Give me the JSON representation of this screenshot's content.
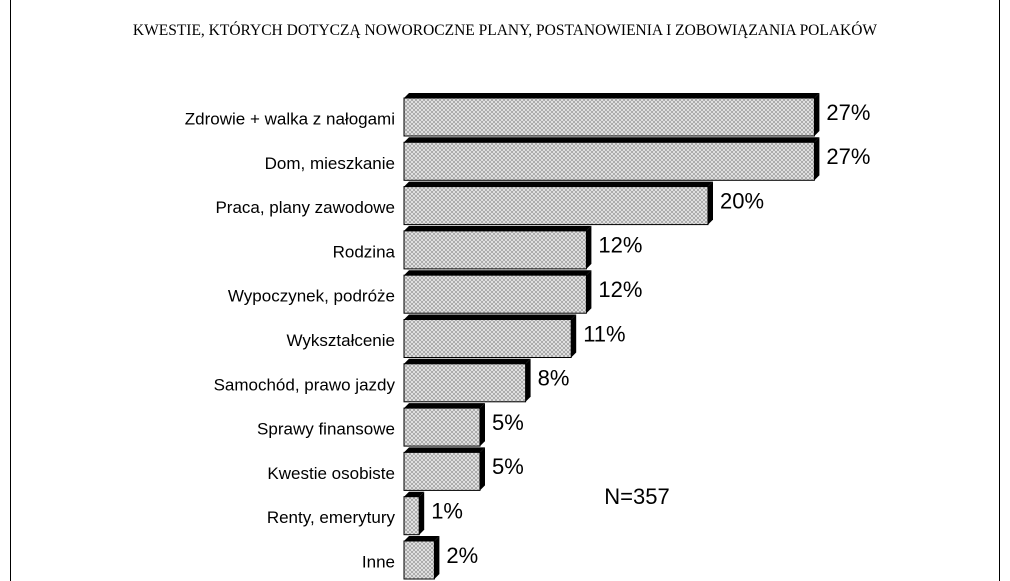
{
  "chart_data": {
    "type": "bar",
    "orientation": "horizontal",
    "title": "KWESTIE, KTÓRYCH DOTYCZĄ NOWOROCZNE PLANY, POSTANOWIENIA I ZOBOWIĄZANIA POLAKÓW",
    "categories": [
      "Zdrowie + walka z nałogami",
      "Dom, mieszkanie",
      "Praca, plany zawodowe",
      "Rodzina",
      "Wypoczynek, podróże",
      "Wykształcenie",
      "Samochód, prawo jazdy",
      "Sprawy finansowe",
      "Kwestie osobiste",
      "Renty, emerytury",
      "Inne"
    ],
    "values": [
      27,
      27,
      20,
      12,
      12,
      11,
      8,
      5,
      5,
      1,
      2
    ],
    "value_labels": [
      "27%",
      "27%",
      "20%",
      "12%",
      "12%",
      "11%",
      "8%",
      "5%",
      "5%",
      "1%",
      "2%"
    ],
    "color": "#d9d9d9",
    "annotation": "N=357"
  }
}
